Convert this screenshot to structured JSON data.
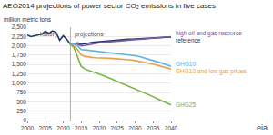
{
  "chart_data": {
    "type": "line",
    "title": "AEO2014 projections of power sector CO₂ emissions in five cases",
    "subtitle": "million metric tons",
    "annotations": [
      "history",
      "projections",
      "eia"
    ],
    "x": [
      2000,
      2001,
      2002,
      2003,
      2004,
      2005,
      2006,
      2007,
      2008,
      2009,
      2010,
      2011,
      2012,
      2013,
      2014,
      2015,
      2016,
      2017,
      2018,
      2019,
      2020,
      2021,
      2022,
      2023,
      2024,
      2025,
      2026,
      2027,
      2028,
      2029,
      2030,
      2031,
      2032,
      2033,
      2034,
      2035,
      2036,
      2037,
      2038,
      2039,
      2040
    ],
    "series": [
      {
        "name": "reference",
        "color": "#1f3a68",
        "values": [
          2290,
          2245,
          2270,
          2290,
          2310,
          2390,
          2330,
          2400,
          2360,
          2150,
          2270,
          2170,
          2040,
          2060,
          2080,
          2040,
          2050,
          2070,
          2090,
          2100,
          2110,
          2120,
          2130,
          2140,
          2150,
          2160,
          2165,
          2170,
          2175,
          2180,
          2185,
          2190,
          2195,
          2200,
          2205,
          2210,
          2215,
          2220,
          2225,
          2230,
          2235
        ]
      },
      {
        "name": "high oil and gas resource",
        "color": "#7b5aa6",
        "values": [
          null,
          null,
          null,
          null,
          null,
          null,
          null,
          null,
          null,
          null,
          null,
          null,
          2040,
          2050,
          2040,
          2000,
          2010,
          2030,
          2050,
          2070,
          2080,
          2090,
          2100,
          2110,
          2120,
          2130,
          2140,
          2150,
          2155,
          2160,
          2170,
          2175,
          2180,
          2190,
          2195,
          2200,
          2210,
          2215,
          2225,
          2235,
          2245
        ]
      },
      {
        "name": "GHG10",
        "color": "#5ab4e5",
        "values": [
          null,
          null,
          null,
          null,
          null,
          null,
          null,
          null,
          null,
          null,
          null,
          null,
          2040,
          2050,
          2000,
          1900,
          1890,
          1880,
          1870,
          1860,
          1850,
          1840,
          1830,
          1820,
          1810,
          1800,
          1790,
          1780,
          1765,
          1750,
          1735,
          1715,
          1690,
          1665,
          1640,
          1610,
          1580,
          1550,
          1520,
          1485,
          1450
        ]
      },
      {
        "name": "GHG10 and low gas prices",
        "color": "#e8a04a",
        "values": [
          null,
          null,
          null,
          null,
          null,
          null,
          null,
          null,
          null,
          null,
          null,
          null,
          2040,
          2000,
          1900,
          1760,
          1720,
          1700,
          1690,
          1680,
          1680,
          1675,
          1670,
          1665,
          1660,
          1655,
          1650,
          1640,
          1630,
          1620,
          1605,
          1590,
          1570,
          1550,
          1530,
          1510,
          1480,
          1460,
          1430,
          1405,
          1380
        ]
      },
      {
        "name": "GHG25",
        "color": "#78b543",
        "values": [
          null,
          null,
          null,
          null,
          null,
          null,
          null,
          null,
          null,
          null,
          null,
          null,
          2040,
          1950,
          1700,
          1450,
          1380,
          1340,
          1310,
          1280,
          1250,
          1210,
          1170,
          1130,
          1090,
          1050,
          1000,
          960,
          920,
          880,
          840,
          800,
          760,
          720,
          680,
          640,
          590,
          550,
          500,
          460,
          420
        ]
      }
    ],
    "xlim": [
      2000,
      2040
    ],
    "xticks": [
      2000,
      2005,
      2010,
      2015,
      2020,
      2025,
      2030,
      2035,
      2040
    ],
    "ylim": [
      0,
      2500
    ],
    "yticks": [
      0,
      250,
      500,
      750,
      {
        "value": 1000,
        "label": "1,000"
      },
      {
        "value": 1250,
        "label": "1,250"
      },
      {
        "value": 1500,
        "label": "1,500"
      },
      {
        "value": 1750,
        "label": "1,750"
      },
      {
        "value": 2000,
        "label": "2,000"
      },
      {
        "value": 2250,
        "label": "2,250"
      },
      {
        "value": 2500,
        "label": "2,500"
      }
    ],
    "grid": true
  }
}
